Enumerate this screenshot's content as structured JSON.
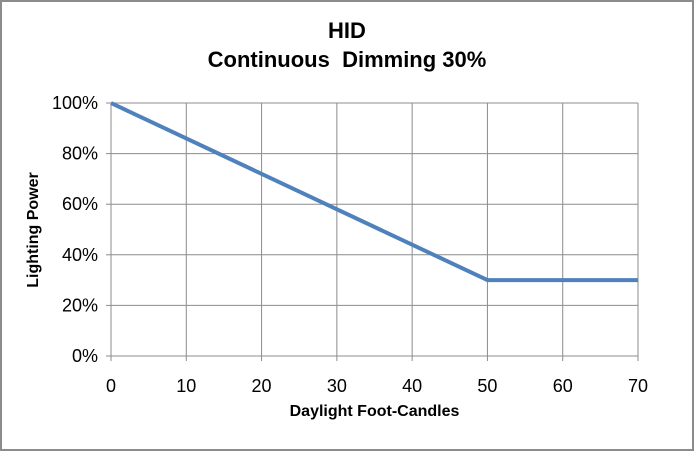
{
  "chart_data": {
    "type": "line",
    "title": "HID",
    "subtitle": "Continuous  Dimming 30%",
    "xlabel": "Daylight Foot-Candles",
    "ylabel": "Lighting Power",
    "xlim": [
      0,
      70
    ],
    "ylim": [
      0,
      100
    ],
    "x_ticks": [
      0,
      10,
      20,
      30,
      40,
      50,
      60,
      70
    ],
    "y_ticks": [
      0,
      20,
      40,
      60,
      80,
      100
    ],
    "y_tick_suffix": "%",
    "grid": true,
    "legend": "none",
    "series": [
      {
        "color": "#4F81BD",
        "points": [
          {
            "x": 0,
            "y": 100
          },
          {
            "x": 50,
            "y": 30
          },
          {
            "x": 70,
            "y": 30
          }
        ]
      }
    ],
    "colors": {
      "line": "#4F81BD",
      "grid": "#8C8C8C",
      "axis": "#8C8C8C",
      "border": "#8C8C8C",
      "text": "#000000",
      "background": "#FFFFFF"
    }
  }
}
